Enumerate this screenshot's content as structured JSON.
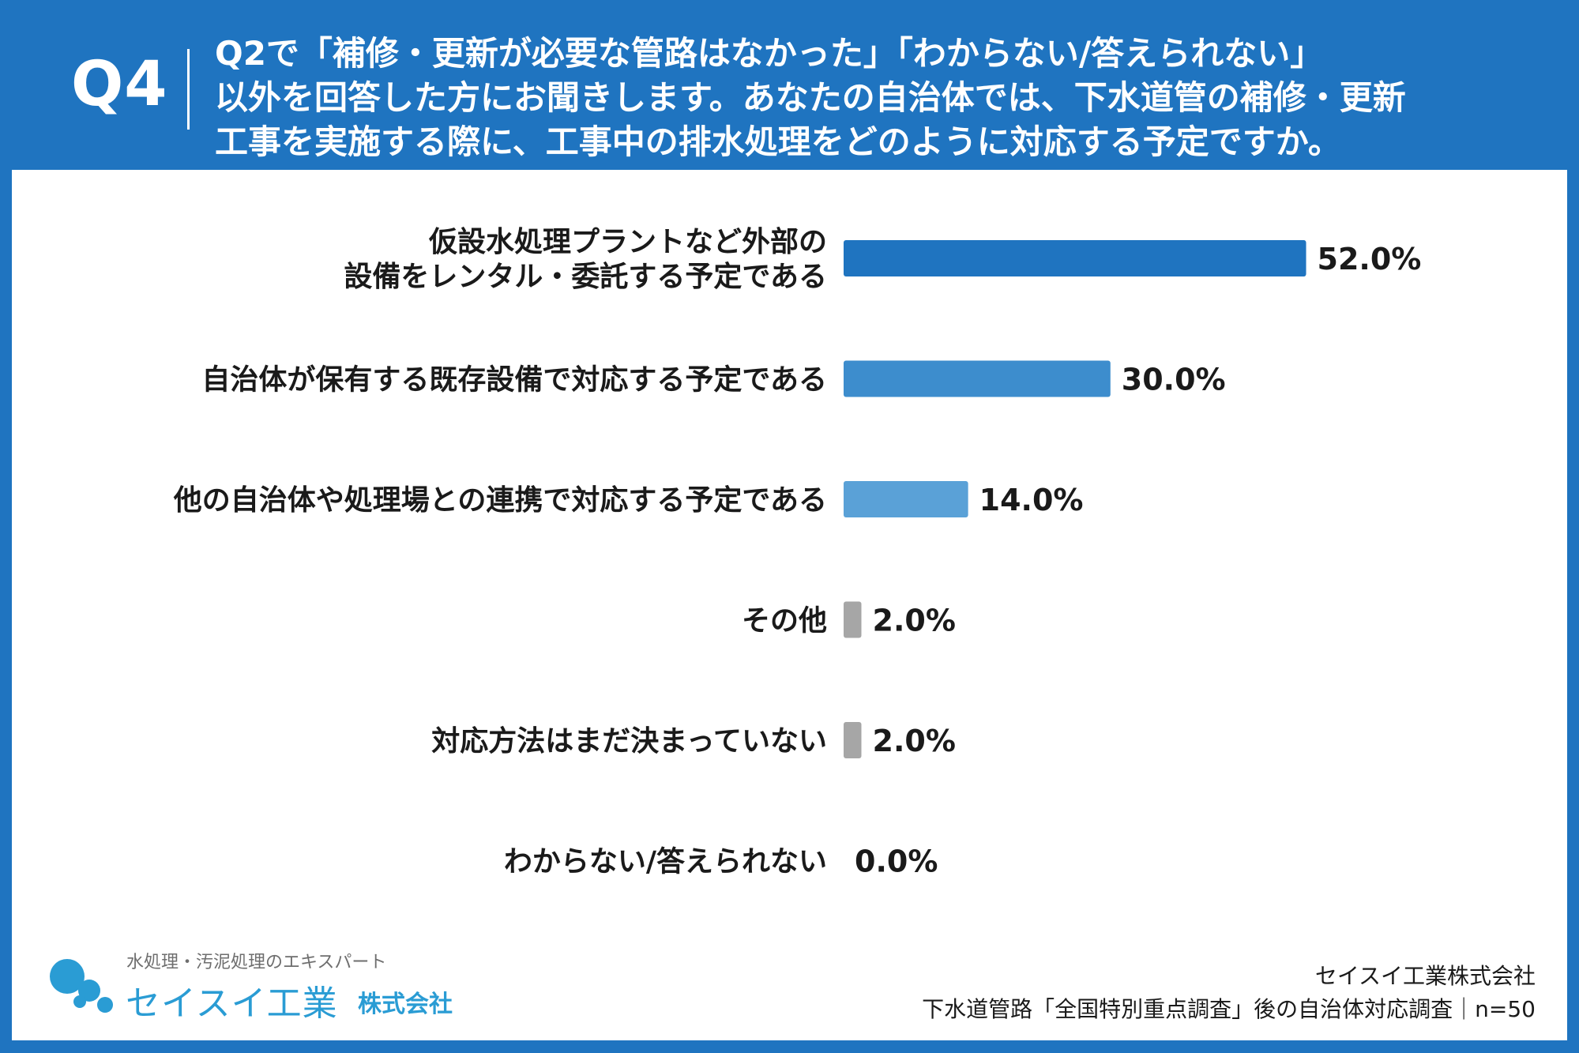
{
  "header": {
    "question_number": "Q4",
    "question_lines": [
      "Q2で「補修・更新が必要な管路はなかった」「わからない/答えられない」",
      "以外を回答した方にお聞きします。あなたの自治体では、下水道管の補修・更新",
      "工事を実施する際に、工事中の排水処理をどのように対応する予定ですか。"
    ]
  },
  "chart_data": {
    "type": "bar",
    "orientation": "horizontal",
    "categories": [
      [
        "仮設水処理プラントなど外部の",
        "設備をレンタル・委託する予定である"
      ],
      [
        "自治体が保有する既存設備で対応する予定である"
      ],
      [
        "他の自治体や処理場との連携で対応する予定である"
      ],
      [
        "その他"
      ],
      [
        "対応方法はまだ決まっていない"
      ],
      [
        "わからない/答えられない"
      ]
    ],
    "values": [
      52.0,
      30.0,
      14.0,
      2.0,
      2.0,
      0.0
    ],
    "value_labels": [
      "52.0%",
      "30.0%",
      "14.0%",
      "2.0%",
      "2.0%",
      "0.0%"
    ],
    "bar_colors": [
      "#1f74c0",
      "#3d8dcd",
      "#5aa1d7",
      "#a6a6a6",
      "#a6a6a6",
      "#a6a6a6"
    ],
    "xlim": [
      0,
      100
    ]
  },
  "logo": {
    "tagline": "水処理・汚泥処理のエキスパート",
    "name": "セイスイ工業",
    "suffix": "株式会社",
    "color": "#2a9cd4"
  },
  "source": {
    "company": "セイスイ工業株式会社",
    "survey": "下水道管路「全国特別重点調査」後の自治体対応調査｜n=50"
  },
  "colors": {
    "frame": "#1f74c0",
    "panel": "#ffffff"
  }
}
